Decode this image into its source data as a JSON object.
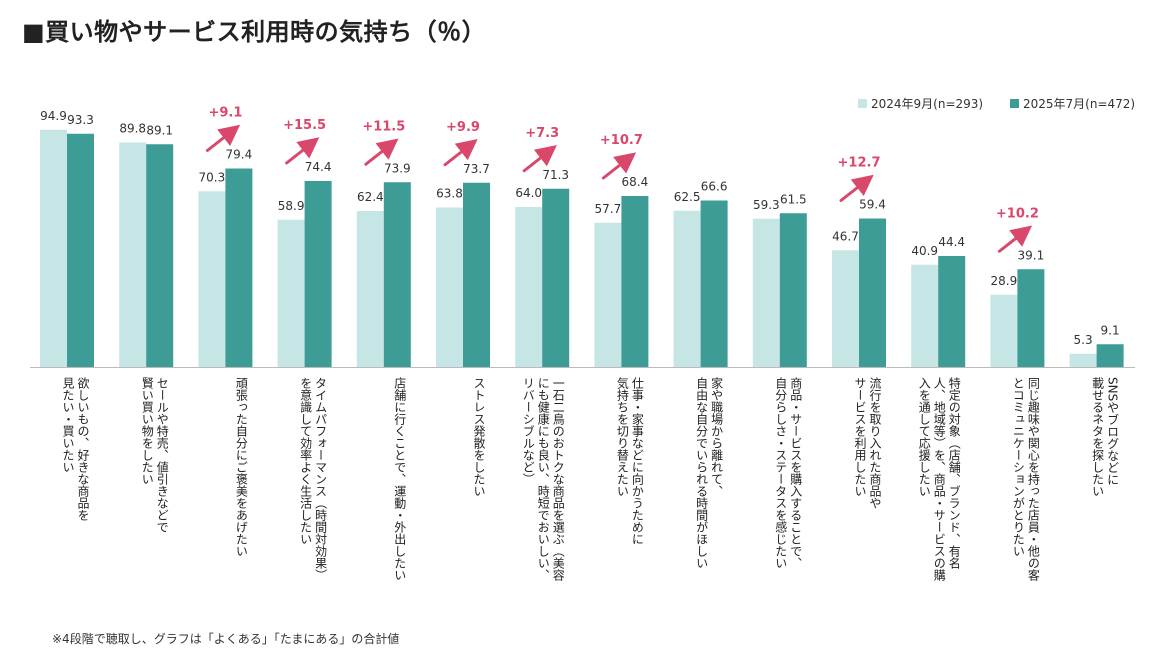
{
  "title": "■買い物やサービス利用時の気持ち（％）",
  "footnote": "※4段階で聴取し、グラフは「よくある」「たまにある」の合計値",
  "colors": {
    "series1": "#c5e6e4",
    "series2": "#3d9c96",
    "diff": "#d9476b"
  },
  "chart_data": {
    "type": "bar",
    "title": "■買い物やサービス利用時の気持ち（％）",
    "legend_position": "top-right",
    "ylim": [
      0,
      100
    ],
    "grid": false,
    "categories": [
      [
        "欲しいもの、好きな商品を",
        "見たい・買いたい"
      ],
      [
        "セールや特売、値引きなどで",
        "賢い買い物をしたい"
      ],
      [
        "頑張った自分にご褒美をあげたい"
      ],
      [
        "タイムパフォーマンス（時間対効果）",
        "を意識して効率よく生活したい"
      ],
      [
        "店舗に行くことで、運動・外出したい"
      ],
      [
        "ストレス発散をしたい"
      ],
      [
        "一石二鳥のおトクな商品を選ぶ（美容",
        "にも健康にも良い、時短でおいしい、",
        "リバーシブルなど）"
      ],
      [
        "仕事・家事などに向かうために",
        "気持ちを切り替えたい"
      ],
      [
        "家や職場から離れて、",
        "自由な自分でいられる時間がほしい"
      ],
      [
        "商品・サービスを購入することで、",
        "自分らしさ・ステータスを感じたい"
      ],
      [
        "流行を取り入れた商品や",
        "サービスを利用したい"
      ],
      [
        "特定の対象（店舗、ブランド、有名",
        "人、地域等）を、商品・サービスの購",
        "入を通して応援したい"
      ],
      [
        "同じ趣味や関心を持った店員・他の客",
        "とコミュニケーションがとりたい"
      ],
      [
        "SNSやブログなどに",
        "載せるネタを探したい"
      ]
    ],
    "series": [
      {
        "name": "2024年9月(n=293)",
        "values": [
          94.9,
          89.8,
          70.3,
          58.9,
          62.4,
          63.8,
          64.0,
          57.7,
          62.5,
          59.3,
          46.7,
          40.9,
          28.9,
          5.3
        ]
      },
      {
        "name": "2025年7月(n=472)",
        "values": [
          93.3,
          89.1,
          79.4,
          74.4,
          73.9,
          73.7,
          71.3,
          68.4,
          66.6,
          61.5,
          59.4,
          44.4,
          39.1,
          9.1
        ]
      }
    ],
    "value_labels": [
      [
        "94.9",
        "89.8",
        "70.3",
        "58.9",
        "62.4",
        "63.8",
        "64.0",
        "57.7",
        "62.5",
        "59.3",
        "46.7",
        "40.9",
        "28.9",
        "5.3"
      ],
      [
        "93.3",
        "89.1",
        "79.4",
        "74.4",
        "73.9",
        "73.7",
        "71.3",
        "68.4",
        "66.6",
        "61.5",
        "59.4",
        "44.4",
        "39.1",
        "9.1"
      ]
    ],
    "annotations": [
      {
        "category_index": 2,
        "text": "+9.1"
      },
      {
        "category_index": 3,
        "text": "+15.5"
      },
      {
        "category_index": 4,
        "text": "+11.5"
      },
      {
        "category_index": 5,
        "text": "+9.9"
      },
      {
        "category_index": 6,
        "text": "+7.3"
      },
      {
        "category_index": 7,
        "text": "+10.7"
      },
      {
        "category_index": 10,
        "text": "+12.7"
      },
      {
        "category_index": 12,
        "text": "+10.2"
      }
    ]
  }
}
